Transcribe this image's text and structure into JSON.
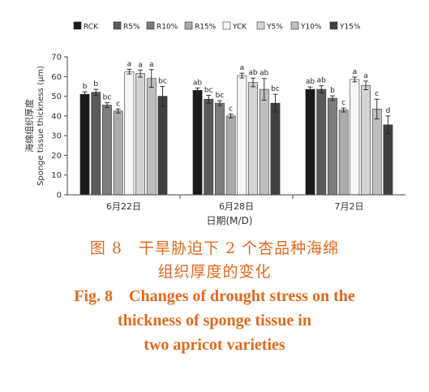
{
  "chart_data": {
    "type": "bar",
    "ylabel_cn": "海绵组织厚度",
    "ylabel_en": "Sponge tissue thickness (μm)",
    "xlabel": "日期(M/D)",
    "ylim": [
      0,
      70
    ],
    "yticks": [
      "0",
      "10",
      "20",
      "30",
      "40",
      "50",
      "60",
      "70"
    ],
    "legend_position": "top",
    "categories": [
      "6月22日",
      "6月28日",
      "7月2日"
    ],
    "series": [
      {
        "name": "RCK",
        "color": "#1a1a1a",
        "values": [
          51,
          53,
          53.5
        ],
        "errors": [
          1.2,
          1.2,
          1.2
        ],
        "letters": [
          "b",
          "ab",
          "ab"
        ]
      },
      {
        "name": "R5%",
        "color": "#5a5a5a",
        "values": [
          52,
          48.5,
          53.5
        ],
        "errors": [
          1.5,
          2.0,
          1.8
        ],
        "letters": [
          "b",
          "bc",
          "ab"
        ]
      },
      {
        "name": "R10%",
        "color": "#7d7d7d",
        "values": [
          45.5,
          46.5,
          49
        ],
        "errors": [
          1.2,
          1.2,
          1.2
        ],
        "letters": [
          "bc",
          "bc",
          "b"
        ]
      },
      {
        "name": "R15%",
        "color": "#ababab",
        "values": [
          42.5,
          40,
          43
        ],
        "errors": [
          1.0,
          1.0,
          1.0
        ],
        "letters": [
          "c",
          "c",
          "c"
        ]
      },
      {
        "name": "YCK",
        "color": "#f7f7f7",
        "values": [
          62.5,
          60.5,
          58.5
        ],
        "errors": [
          1.2,
          1.2,
          1.2
        ],
        "letters": [
          "a",
          "a",
          "a"
        ]
      },
      {
        "name": "Y5%",
        "color": "#d4d4d4",
        "values": [
          61.5,
          57,
          55.5
        ],
        "errors": [
          1.8,
          2.2,
          2.2
        ],
        "letters": [
          "a",
          "ab",
          "a"
        ]
      },
      {
        "name": "Y10%",
        "color": "#bebebe",
        "values": [
          59,
          53.5,
          43.5
        ],
        "errors": [
          4.5,
          5.5,
          5.0
        ],
        "letters": [
          "a",
          "ab",
          "c"
        ]
      },
      {
        "name": "Y15%",
        "color": "#404040",
        "values": [
          50,
          46.5,
          35.5
        ],
        "errors": [
          5.0,
          4.5,
          4.5
        ],
        "letters": [
          "bc",
          "bc",
          "d"
        ]
      }
    ]
  },
  "caption": {
    "cn_line1": "图 8　干旱胁迫下 2 个杏品种海绵",
    "cn_line2": "组织厚度的变化",
    "en_line1": "Fig. 8　Changes of drought stress on the",
    "en_line2": "thickness of sponge tissue in",
    "en_line3": "two apricot varieties"
  }
}
